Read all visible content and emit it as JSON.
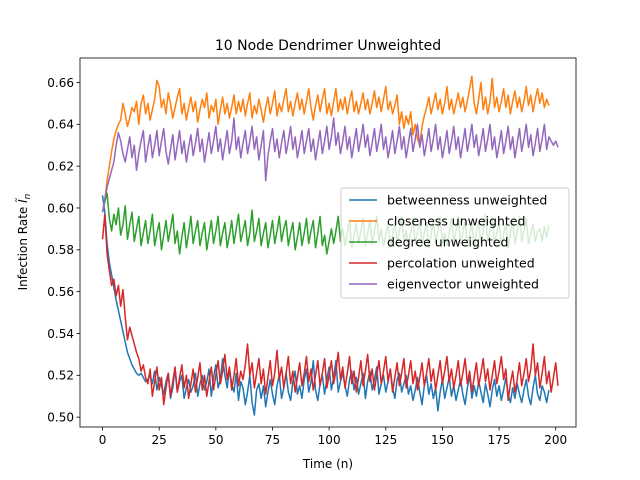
{
  "chart_data": {
    "type": "line",
    "title": "10 Node Dendrimer Unweighted",
    "xlabel": "Time (n)",
    "ylabel": "Infection Rate",
    "ylabel_symbol": "Ĩ",
    "ylabel_subscript": "n",
    "xlim": [
      -9.95,
      208.95
    ],
    "ylim": [
      0.4953,
      0.6717
    ],
    "xticks": [
      0,
      25,
      50,
      75,
      100,
      125,
      150,
      175,
      200
    ],
    "yticks": [
      0.5,
      0.52,
      0.54,
      0.56,
      0.58,
      0.6,
      0.62,
      0.64,
      0.66
    ],
    "ytick_labels": [
      "0.50",
      "0.52",
      "0.54",
      "0.56",
      "0.58",
      "0.60",
      "0.62",
      "0.64",
      "0.66"
    ],
    "legend_position": "center-right",
    "x": {
      "start": 0,
      "end": 199,
      "step": 1
    },
    "series": [
      {
        "name": "betweenness unweighted",
        "color": "#1f77b4",
        "values": [
          0.606,
          0.598,
          0.583,
          0.574,
          0.568,
          0.562,
          0.556,
          0.551,
          0.546,
          0.541,
          0.536,
          0.531,
          0.528,
          0.525,
          0.523,
          0.521,
          0.52,
          0.521,
          0.519,
          0.517,
          0.518,
          0.52,
          0.516,
          0.522,
          0.513,
          0.519,
          0.515,
          0.511,
          0.517,
          0.521,
          0.509,
          0.514,
          0.523,
          0.512,
          0.517,
          0.52,
          0.509,
          0.514,
          0.518,
          0.512,
          0.515,
          0.521,
          0.51,
          0.516,
          0.52,
          0.513,
          0.517,
          0.523,
          0.51,
          0.519,
          0.525,
          0.514,
          0.518,
          0.528,
          0.52,
          0.514,
          0.523,
          0.516,
          0.512,
          0.521,
          0.508,
          0.517,
          0.514,
          0.506,
          0.512,
          0.52,
          0.507,
          0.501,
          0.513,
          0.516,
          0.509,
          0.515,
          0.505,
          0.512,
          0.518,
          0.511,
          0.506,
          0.515,
          0.52,
          0.509,
          0.514,
          0.521,
          0.512,
          0.508,
          0.517,
          0.522,
          0.511,
          0.515,
          0.509,
          0.518,
          0.523,
          0.512,
          0.517,
          0.527,
          0.513,
          0.508,
          0.516,
          0.52,
          0.511,
          0.518,
          0.524,
          0.513,
          0.519,
          0.527,
          0.512,
          0.517,
          0.521,
          0.515,
          0.51,
          0.518,
          0.522,
          0.513,
          0.519,
          0.511,
          0.516,
          0.521,
          0.509,
          0.517,
          0.522,
          0.513,
          0.518,
          0.524,
          0.511,
          0.516,
          0.52,
          0.512,
          0.517,
          0.523,
          0.514,
          0.509,
          0.518,
          0.521,
          0.512,
          0.516,
          0.52,
          0.511,
          0.515,
          0.508,
          0.513,
          0.519,
          0.512,
          0.506,
          0.515,
          0.52,
          0.511,
          0.516,
          0.509,
          0.514,
          0.503,
          0.512,
          0.518,
          0.509,
          0.514,
          0.519,
          0.51,
          0.515,
          0.508,
          0.513,
          0.518,
          0.511,
          0.506,
          0.514,
          0.52,
          0.509,
          0.515,
          0.51,
          0.517,
          0.512,
          0.507,
          0.516,
          0.511,
          0.505,
          0.513,
          0.518,
          0.51,
          0.515,
          0.508,
          0.513,
          0.519,
          0.511,
          0.507,
          0.514,
          0.509,
          0.516,
          0.511,
          0.507,
          0.513,
          0.518,
          0.51,
          0.506,
          0.514,
          0.52,
          0.511,
          0.508,
          0.515,
          0.512,
          0.507,
          0.513
        ]
      },
      {
        "name": "closeness unweighted",
        "color": "#ff7f0e",
        "values": [
          0.598,
          0.604,
          0.613,
          0.62,
          0.627,
          0.633,
          0.637,
          0.64,
          0.642,
          0.65,
          0.645,
          0.639,
          0.643,
          0.648,
          0.646,
          0.651,
          0.64,
          0.65,
          0.654,
          0.645,
          0.65,
          0.642,
          0.647,
          0.652,
          0.661,
          0.658,
          0.648,
          0.652,
          0.645,
          0.655,
          0.65,
          0.643,
          0.648,
          0.653,
          0.657,
          0.645,
          0.65,
          0.642,
          0.648,
          0.653,
          0.646,
          0.651,
          0.641,
          0.647,
          0.652,
          0.648,
          0.655,
          0.643,
          0.649,
          0.646,
          0.652,
          0.64,
          0.647,
          0.653,
          0.645,
          0.65,
          0.643,
          0.648,
          0.654,
          0.645,
          0.651,
          0.646,
          0.652,
          0.644,
          0.65,
          0.655,
          0.643,
          0.649,
          0.645,
          0.652,
          0.647,
          0.641,
          0.648,
          0.653,
          0.645,
          0.65,
          0.656,
          0.644,
          0.65,
          0.646,
          0.652,
          0.657,
          0.646,
          0.651,
          0.644,
          0.65,
          0.655,
          0.647,
          0.652,
          0.645,
          0.651,
          0.657,
          0.648,
          0.642,
          0.649,
          0.654,
          0.646,
          0.652,
          0.657,
          0.645,
          0.65,
          0.644,
          0.651,
          0.657,
          0.646,
          0.652,
          0.647,
          0.653,
          0.645,
          0.651,
          0.656,
          0.646,
          0.651,
          0.645,
          0.65,
          0.655,
          0.647,
          0.652,
          0.645,
          0.65,
          0.656,
          0.648,
          0.653,
          0.646,
          0.652,
          0.658,
          0.647,
          0.651,
          0.645,
          0.649,
          0.654,
          0.64,
          0.646,
          0.638,
          0.644,
          0.64,
          0.646,
          0.635,
          0.64,
          0.633,
          0.63,
          0.639,
          0.644,
          0.648,
          0.653,
          0.645,
          0.65,
          0.655,
          0.647,
          0.652,
          0.645,
          0.65,
          0.658,
          0.647,
          0.652,
          0.645,
          0.65,
          0.655,
          0.648,
          0.653,
          0.646,
          0.651,
          0.657,
          0.663,
          0.65,
          0.645,
          0.652,
          0.66,
          0.647,
          0.653,
          0.645,
          0.651,
          0.662,
          0.648,
          0.653,
          0.646,
          0.651,
          0.657,
          0.648,
          0.654,
          0.645,
          0.651,
          0.656,
          0.648,
          0.653,
          0.646,
          0.651,
          0.658,
          0.649,
          0.654,
          0.646,
          0.652,
          0.657,
          0.65,
          0.655,
          0.648,
          0.652,
          0.649
        ]
      },
      {
        "name": "degree unweighted",
        "color": "#2ca02c",
        "values": [
          0.598,
          0.603,
          0.607,
          0.595,
          0.589,
          0.597,
          0.592,
          0.6,
          0.587,
          0.592,
          0.601,
          0.585,
          0.592,
          0.598,
          0.584,
          0.59,
          0.596,
          0.582,
          0.588,
          0.594,
          0.583,
          0.589,
          0.597,
          0.582,
          0.588,
          0.593,
          0.58,
          0.587,
          0.594,
          0.584,
          0.59,
          0.597,
          0.583,
          0.589,
          0.578,
          0.586,
          0.593,
          0.581,
          0.588,
          0.596,
          0.583,
          0.589,
          0.594,
          0.582,
          0.588,
          0.593,
          0.58,
          0.587,
          0.594,
          0.583,
          0.589,
          0.596,
          0.582,
          0.588,
          0.593,
          0.581,
          0.587,
          0.594,
          0.583,
          0.59,
          0.597,
          0.584,
          0.589,
          0.594,
          0.582,
          0.588,
          0.599,
          0.584,
          0.589,
          0.595,
          0.582,
          0.588,
          0.593,
          0.581,
          0.587,
          0.594,
          0.583,
          0.589,
          0.596,
          0.584,
          0.59,
          0.594,
          0.582,
          0.588,
          0.593,
          0.58,
          0.586,
          0.593,
          0.582,
          0.588,
          0.595,
          0.583,
          0.589,
          0.594,
          0.581,
          0.588,
          0.596,
          0.582,
          0.587,
          0.578,
          0.584,
          0.59,
          0.583,
          0.589,
          0.596,
          0.584,
          0.59,
          0.582,
          0.588,
          0.594,
          0.581,
          0.587,
          0.593,
          0.583,
          0.589,
          0.595,
          0.582,
          0.588,
          0.594,
          0.583,
          0.589,
          0.596,
          0.584,
          0.59,
          0.582,
          0.587,
          0.593,
          0.581,
          0.587,
          0.594,
          0.583,
          0.589,
          0.596,
          0.584,
          0.589,
          0.582,
          0.588,
          0.595,
          0.583,
          0.589,
          0.594,
          0.582,
          0.588,
          0.593,
          0.581,
          0.587,
          0.594,
          0.583,
          0.589,
          0.596,
          0.583,
          0.588,
          0.582,
          0.588,
          0.595,
          0.584,
          0.589,
          0.596,
          0.583,
          0.588,
          0.594,
          0.582,
          0.587,
          0.593,
          0.581,
          0.588,
          0.594,
          0.583,
          0.589,
          0.597,
          0.584,
          0.589,
          0.595,
          0.583,
          0.588,
          0.594,
          0.582,
          0.587,
          0.593,
          0.581,
          0.588,
          0.594,
          0.583,
          0.589,
          0.596,
          0.584,
          0.589,
          0.595,
          0.583,
          0.588,
          0.592,
          0.584,
          0.589,
          0.59,
          0.584,
          0.591,
          0.586,
          0.592
        ]
      },
      {
        "name": "percolation unweighted",
        "color": "#d62728",
        "values": [
          0.585,
          0.597,
          0.578,
          0.57,
          0.563,
          0.566,
          0.558,
          0.563,
          0.553,
          0.561,
          0.548,
          0.537,
          0.543,
          0.539,
          0.535,
          0.531,
          0.528,
          0.522,
          0.525,
          0.519,
          0.516,
          0.523,
          0.51,
          0.517,
          0.524,
          0.513,
          0.519,
          0.506,
          0.514,
          0.521,
          0.51,
          0.517,
          0.524,
          0.512,
          0.519,
          0.525,
          0.514,
          0.52,
          0.509,
          0.516,
          0.523,
          0.512,
          0.519,
          0.526,
          0.513,
          0.52,
          0.51,
          0.517,
          0.524,
          0.513,
          0.52,
          0.527,
          0.516,
          0.522,
          0.53,
          0.518,
          0.524,
          0.513,
          0.52,
          0.528,
          0.515,
          0.522,
          0.518,
          0.525,
          0.535,
          0.52,
          0.526,
          0.514,
          0.521,
          0.528,
          0.516,
          0.523,
          0.511,
          0.519,
          0.527,
          0.515,
          0.521,
          0.532,
          0.518,
          0.524,
          0.514,
          0.521,
          0.529,
          0.516,
          0.522,
          0.512,
          0.519,
          0.526,
          0.515,
          0.521,
          0.529,
          0.517,
          0.523,
          0.513,
          0.52,
          0.527,
          0.515,
          0.521,
          0.528,
          0.514,
          0.52,
          0.527,
          0.516,
          0.522,
          0.531,
          0.518,
          0.524,
          0.514,
          0.521,
          0.529,
          0.516,
          0.522,
          0.512,
          0.519,
          0.527,
          0.515,
          0.522,
          0.53,
          0.517,
          0.523,
          0.513,
          0.52,
          0.527,
          0.516,
          0.522,
          0.529,
          0.517,
          0.523,
          0.512,
          0.519,
          0.526,
          0.515,
          0.521,
          0.528,
          0.514,
          0.52,
          0.527,
          0.516,
          0.522,
          0.513,
          0.519,
          0.526,
          0.515,
          0.521,
          0.528,
          0.517,
          0.523,
          0.513,
          0.52,
          0.527,
          0.516,
          0.522,
          0.529,
          0.517,
          0.523,
          0.514,
          0.52,
          0.527,
          0.515,
          0.521,
          0.528,
          0.516,
          0.522,
          0.512,
          0.519,
          0.526,
          0.515,
          0.521,
          0.528,
          0.517,
          0.523,
          0.513,
          0.52,
          0.527,
          0.516,
          0.522,
          0.529,
          0.518,
          0.523,
          0.508,
          0.516,
          0.522,
          0.512,
          0.518,
          0.526,
          0.515,
          0.521,
          0.528,
          0.517,
          0.523,
          0.535,
          0.52,
          0.526,
          0.514,
          0.521,
          0.529,
          0.516,
          0.522,
          0.512,
          0.519,
          0.526,
          0.515
        ]
      },
      {
        "name": "eigenvector unweighted",
        "color": "#9467bd",
        "values": [
          0.598,
          0.604,
          0.61,
          0.614,
          0.618,
          0.622,
          0.63,
          0.636,
          0.632,
          0.626,
          0.622,
          0.628,
          0.634,
          0.624,
          0.63,
          0.618,
          0.626,
          0.632,
          0.637,
          0.622,
          0.629,
          0.635,
          0.624,
          0.63,
          0.637,
          0.625,
          0.632,
          0.638,
          0.627,
          0.621,
          0.628,
          0.635,
          0.623,
          0.63,
          0.637,
          0.626,
          0.632,
          0.622,
          0.629,
          0.635,
          0.625,
          0.631,
          0.638,
          0.627,
          0.633,
          0.622,
          0.629,
          0.636,
          0.626,
          0.632,
          0.639,
          0.627,
          0.633,
          0.623,
          0.63,
          0.637,
          0.626,
          0.632,
          0.643,
          0.628,
          0.634,
          0.624,
          0.631,
          0.637,
          0.626,
          0.632,
          0.639,
          0.628,
          0.634,
          0.623,
          0.63,
          0.637,
          0.613,
          0.625,
          0.632,
          0.638,
          0.627,
          0.633,
          0.624,
          0.631,
          0.637,
          0.626,
          0.632,
          0.639,
          0.628,
          0.634,
          0.624,
          0.63,
          0.637,
          0.626,
          0.632,
          0.638,
          0.627,
          0.633,
          0.623,
          0.63,
          0.637,
          0.626,
          0.632,
          0.639,
          0.628,
          0.634,
          0.643,
          0.63,
          0.636,
          0.626,
          0.632,
          0.639,
          0.628,
          0.634,
          0.624,
          0.631,
          0.638,
          0.627,
          0.633,
          0.64,
          0.629,
          0.635,
          0.625,
          0.631,
          0.638,
          0.627,
          0.633,
          0.64,
          0.628,
          0.634,
          0.624,
          0.63,
          0.637,
          0.626,
          0.632,
          0.639,
          0.628,
          0.634,
          0.624,
          0.631,
          0.638,
          0.627,
          0.633,
          0.64,
          0.629,
          0.635,
          0.625,
          0.631,
          0.638,
          0.627,
          0.633,
          0.64,
          0.628,
          0.634,
          0.624,
          0.63,
          0.637,
          0.626,
          0.632,
          0.639,
          0.628,
          0.634,
          0.624,
          0.631,
          0.638,
          0.627,
          0.633,
          0.64,
          0.629,
          0.635,
          0.625,
          0.631,
          0.638,
          0.627,
          0.633,
          0.64,
          0.628,
          0.634,
          0.624,
          0.63,
          0.637,
          0.626,
          0.632,
          0.639,
          0.628,
          0.634,
          0.624,
          0.631,
          0.638,
          0.627,
          0.633,
          0.64,
          0.629,
          0.635,
          0.625,
          0.631,
          0.638,
          0.627,
          0.633,
          0.64,
          0.628,
          0.634,
          0.632,
          0.63,
          0.632,
          0.629
        ]
      }
    ]
  }
}
